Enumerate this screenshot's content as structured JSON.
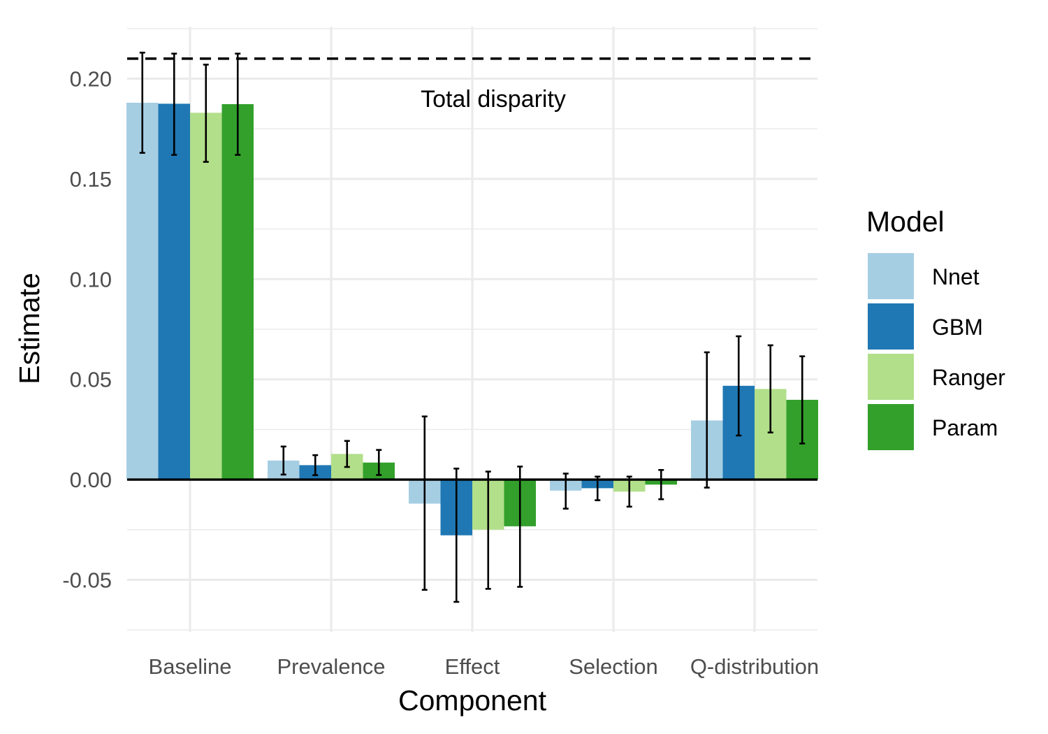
{
  "chart_data": {
    "type": "bar",
    "title": "",
    "xlabel": "Component",
    "ylabel": "Estimate",
    "categories": [
      "Baseline",
      "Prevalence",
      "Effect",
      "Selection",
      "Q-distribution"
    ],
    "ylim": [
      -0.076,
      0.226
    ],
    "yticks": [
      -0.05,
      0.0,
      0.05,
      0.1,
      0.15,
      0.2
    ],
    "ytick_labels": [
      "-0.05",
      "0.00",
      "0.05",
      "0.10",
      "0.15",
      "0.20"
    ],
    "legend": {
      "title": "Model",
      "position": "right"
    },
    "series": [
      {
        "name": "Nnet",
        "color": "#A6CEE3",
        "values": [
          0.188,
          0.0095,
          -0.012,
          -0.0055,
          0.0295
        ],
        "lower": [
          0.163,
          0.0025,
          -0.055,
          -0.0145,
          -0.004
        ],
        "upper": [
          0.213,
          0.0165,
          0.0315,
          0.003,
          0.0635
        ]
      },
      {
        "name": "GBM",
        "color": "#1F78B4",
        "values": [
          0.1875,
          0.0072,
          -0.0278,
          -0.0043,
          0.0468
        ],
        "lower": [
          0.162,
          0.0022,
          -0.061,
          -0.0103,
          0.022
        ],
        "upper": [
          0.2125,
          0.0122,
          0.0055,
          0.0015,
          0.0715
        ]
      },
      {
        "name": "Ranger",
        "color": "#B2DF8A",
        "values": [
          0.183,
          0.0128,
          -0.025,
          -0.006,
          0.0452
        ],
        "lower": [
          0.1585,
          0.0063,
          -0.0545,
          -0.0135,
          0.0235
        ],
        "upper": [
          0.207,
          0.0193,
          0.004,
          0.0015,
          0.067
        ]
      },
      {
        "name": "Param",
        "color": "#33A02C",
        "values": [
          0.1873,
          0.0085,
          -0.0233,
          -0.0025,
          0.0398
        ],
        "lower": [
          0.162,
          0.0023,
          -0.0535,
          -0.0098,
          0.018
        ],
        "upper": [
          0.2125,
          0.0148,
          0.0065,
          0.0048,
          0.0615
        ]
      }
    ],
    "reference_line": {
      "value": 0.21,
      "style": "dashed",
      "label": "Total disparity",
      "label_value": 0.19
    },
    "zero_line": 0.0,
    "grid": true
  }
}
